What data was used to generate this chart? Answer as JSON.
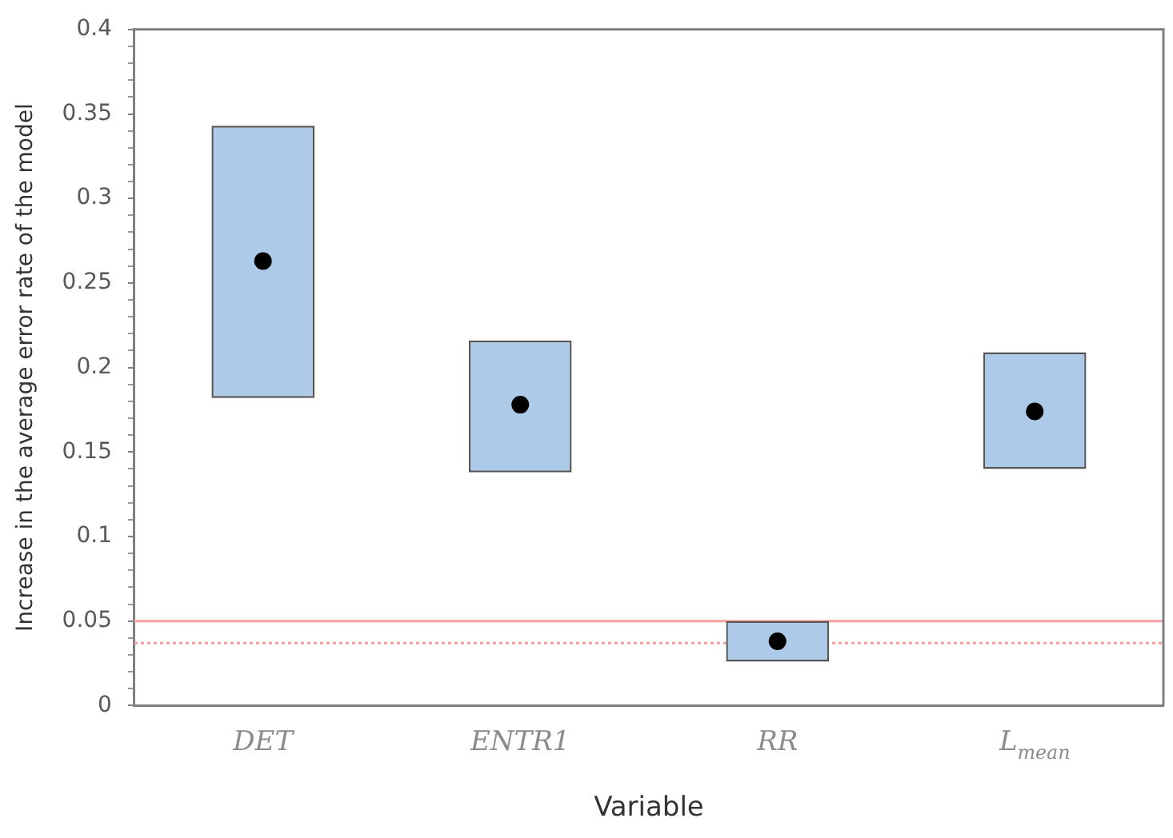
{
  "chart_data": {
    "type": "bar",
    "xlabel": "Variable",
    "ylabel": "Increase in the average error rate of the model",
    "categories": [
      "DET",
      "ENTR1",
      "RR",
      "L$_{mean}$"
    ],
    "series": [
      {
        "color": "#adcbe8",
        "base": [
          0.182,
          0.138,
          0.026,
          0.14
        ],
        "values": [
          0.161,
          0.078,
          0.024,
          0.069
        ]
      },
      {
        "type": "scatter",
        "color": "#000000",
        "marker": "circle",
        "x": [
          "DET",
          "ENTR1",
          "RR",
          "L$_{mean}$"
        ],
        "values": [
          0.263,
          0.178,
          0.038,
          0.174
        ]
      }
    ],
    "ylim": [
      0,
      0.4
    ],
    "yticks": [
      0,
      {
        "value": 0.01,
        "label": null
      },
      {
        "value": 0.02,
        "label": null
      },
      {
        "value": 0.03,
        "label": null
      },
      {
        "value": 0.04,
        "label": null
      },
      0.05,
      {
        "value": 0.06,
        "label": null
      },
      {
        "value": 0.07,
        "label": null
      },
      {
        "value": 0.08,
        "label": null
      },
      {
        "value": 0.09,
        "label": null
      },
      0.1,
      {
        "value": 0.11,
        "label": null
      },
      {
        "value": 0.12,
        "label": null
      },
      {
        "value": 0.13,
        "label": null
      },
      {
        "value": 0.14,
        "label": null
      },
      0.15,
      {
        "value": 0.16,
        "label": null
      },
      {
        "value": 0.17,
        "label": null
      },
      {
        "value": 0.18,
        "label": null
      },
      {
        "value": 0.19,
        "label": null
      },
      0.2,
      {
        "value": 0.21,
        "label": null
      },
      {
        "value": 0.22,
        "label": null
      },
      {
        "value": 0.23,
        "label": null
      },
      {
        "value": 0.24,
        "label": null
      },
      0.25,
      {
        "value": 0.26,
        "label": null
      },
      {
        "value": 0.27,
        "label": null
      },
      {
        "value": 0.28,
        "label": null
      },
      {
        "value": 0.29,
        "label": null
      },
      0.3,
      {
        "value": 0.31,
        "label": null
      },
      {
        "value": 0.32,
        "label": null
      },
      {
        "value": 0.33,
        "label": null
      },
      {
        "value": 0.34,
        "label": null
      },
      0.35,
      {
        "value": 0.36,
        "label": null
      },
      {
        "value": 0.37,
        "label": null
      },
      {
        "value": 0.38,
        "label": null
      },
      {
        "value": 0.39,
        "label": null
      },
      0.4
    ],
    "ref_lines": [
      {
        "axis": "y",
        "value": 0.05,
        "color": "#f4a0a0",
        "line_style": "solid"
      },
      {
        "axis": "y",
        "value": 0.037,
        "color": "#f4a0a0",
        "line_style": "dotted"
      }
    ],
    "grid": false,
    "legend": false
  }
}
